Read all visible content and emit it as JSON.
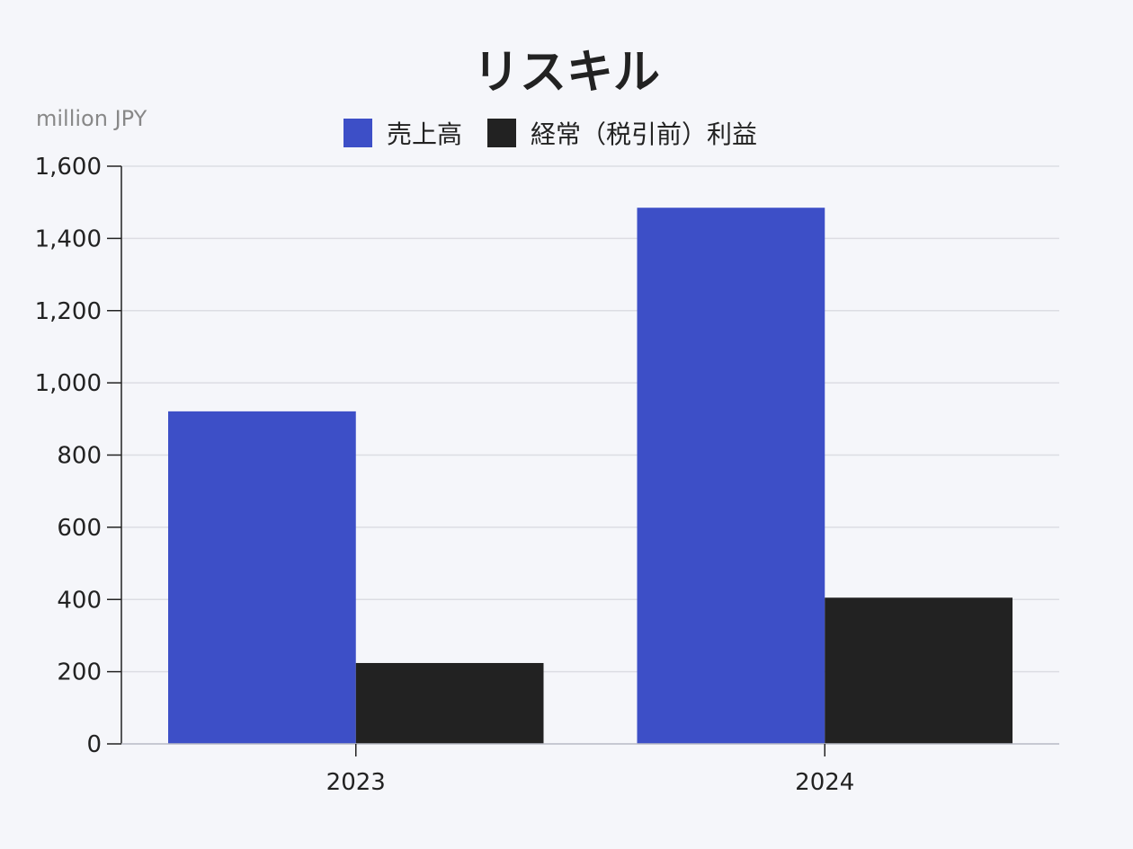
{
  "chart_data": {
    "type": "bar",
    "title": "リスキル",
    "unit_label": "million JPY",
    "categories": [
      "2023",
      "2024"
    ],
    "series": [
      {
        "name": "売上高",
        "values": [
          921,
          1485
        ]
      },
      {
        "name": "経常（税引前）利益",
        "values": [
          224,
          405
        ]
      }
    ],
    "ylim": [
      0,
      1600
    ],
    "yticks": [
      0,
      200,
      400,
      600,
      800,
      1000,
      1200,
      1400,
      1600
    ],
    "ytick_labels": [
      "0",
      "200",
      "400",
      "600",
      "800",
      "1,000",
      "1,200",
      "1,400",
      "1,600"
    ],
    "grid": true,
    "legend_position": "top-center"
  },
  "colors": {
    "series": [
      "#3d4fc7",
      "#222222"
    ],
    "grid": "#dcdde3",
    "axis": "#222222",
    "background": "#f5f6fa"
  }
}
